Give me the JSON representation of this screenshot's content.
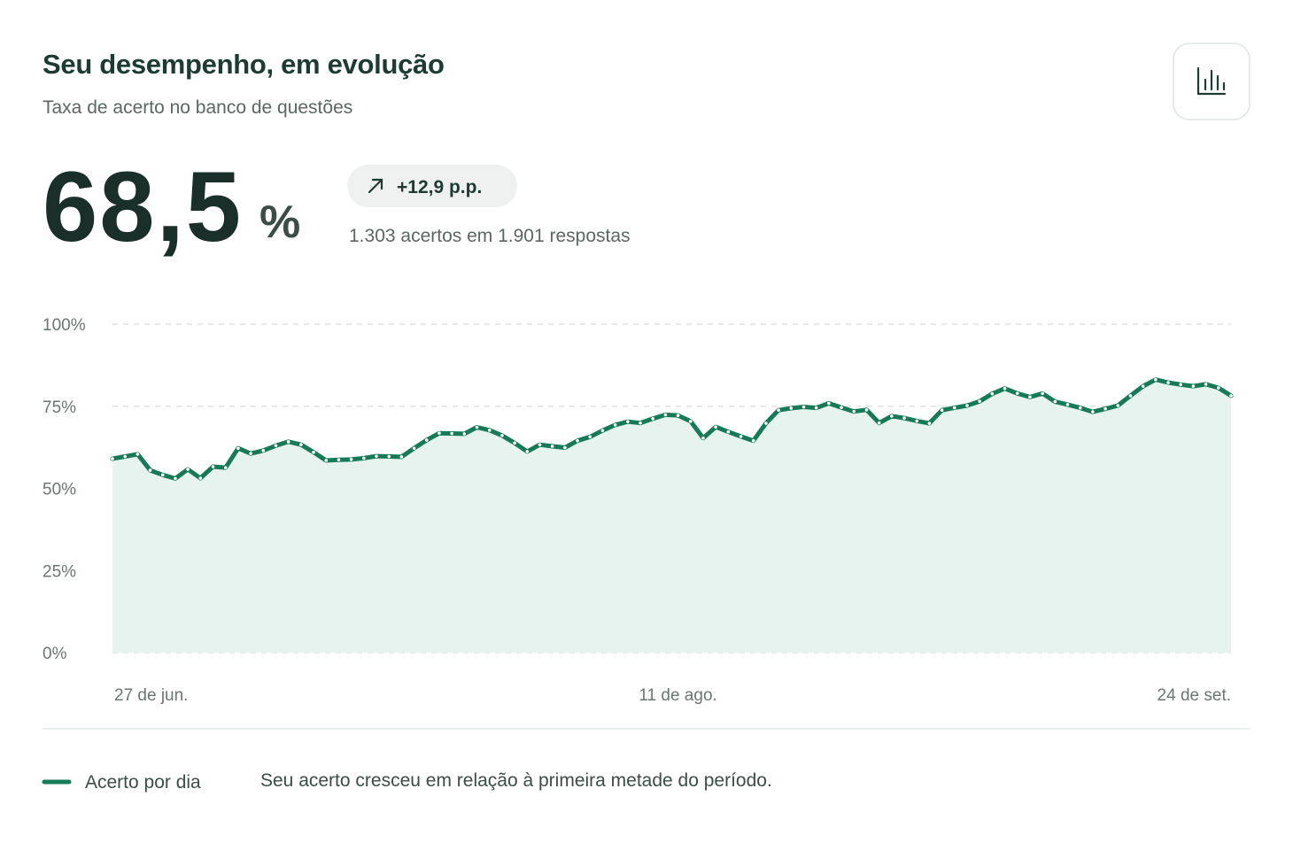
{
  "header": {
    "title": "Seu desempenho, em evolução",
    "subtitle": "Taxa de acerto no banco de questões"
  },
  "summary": {
    "value": "68,5",
    "unit": "%",
    "change": "+12,9 p.p.",
    "detail": "1.303 acertos em 1.901 respostas"
  },
  "note": "Seu acerto cresceu em relação à primeira metade do período.",
  "chart_data": {
    "type": "line",
    "categories": [
      "27 de jun.",
      null,
      null,
      null,
      null,
      null,
      null,
      null,
      null,
      null,
      null,
      null,
      null,
      null,
      null,
      null,
      null,
      null,
      null,
      null,
      null,
      null,
      null,
      null,
      null,
      null,
      null,
      null,
      null,
      null,
      null,
      null,
      null,
      null,
      null,
      null,
      null,
      null,
      null,
      null,
      null,
      null,
      null,
      null,
      null,
      "11 de ago.",
      null,
      null,
      null,
      null,
      null,
      null,
      null,
      null,
      null,
      null,
      null,
      null,
      null,
      null,
      null,
      null,
      null,
      null,
      null,
      null,
      null,
      null,
      null,
      null,
      null,
      null,
      null,
      null,
      null,
      null,
      null,
      null,
      null,
      null,
      null,
      null,
      null,
      null,
      null,
      null,
      null,
      null,
      null,
      "24 de set."
    ],
    "series": [
      {
        "name": "Acerto por dia",
        "color": "#157a55",
        "values": [
          59.0,
          59.7,
          60.4,
          55.5,
          54.1,
          53.0,
          55.8,
          53.1,
          56.6,
          56.3,
          62.2,
          60.6,
          61.5,
          63.0,
          64.2,
          63.3,
          61.0,
          58.5,
          58.7,
          58.8,
          59.2,
          59.8,
          59.7,
          59.6,
          62.2,
          64.7,
          66.8,
          66.7,
          66.6,
          68.6,
          67.7,
          66.1,
          63.8,
          61.2,
          63.3,
          62.8,
          62.4,
          64.5,
          65.7,
          67.6,
          69.3,
          70.3,
          69.9,
          71.2,
          72.4,
          72.2,
          70.4,
          65.3,
          68.7,
          67.2,
          65.8,
          64.5,
          69.8,
          73.8,
          74.4,
          74.8,
          74.5,
          75.9,
          74.6,
          73.4,
          73.9,
          69.9,
          72.0,
          71.4,
          70.5,
          69.8,
          73.8,
          74.5,
          75.2,
          76.5,
          78.8,
          80.4,
          78.9,
          77.8,
          78.9,
          76.4,
          75.5,
          74.5,
          73.3,
          74.2,
          75.2,
          78.2,
          81.1,
          83.1,
          82.2,
          81.6,
          81.1,
          81.7,
          80.6,
          78.2
        ]
      }
    ],
    "area_color": "#e6f3ee",
    "ylim": [
      0,
      100
    ],
    "yticks": [
      {
        "value": 0,
        "label": "0%"
      },
      {
        "value": 25,
        "label": "25%"
      },
      {
        "value": 50,
        "label": "50%"
      },
      {
        "value": 75,
        "label": "75%"
      },
      {
        "value": 100,
        "label": "100%"
      }
    ],
    "grid": true
  }
}
